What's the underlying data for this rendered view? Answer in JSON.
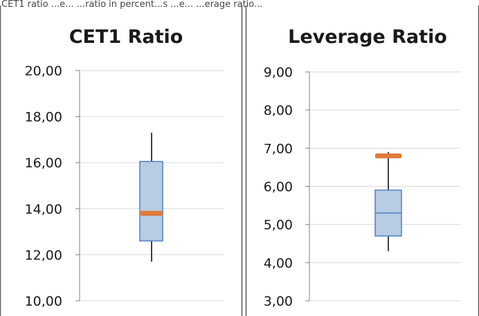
{
  "caption": "CET1 ratio ...e... ...ratio in percent...s ...e... ...erage ratio...",
  "colors": {
    "box_fill": "#b8cce4",
    "box_stroke": "#4f81bd",
    "marker": "#e07b39",
    "whisker": "#000000",
    "grid": "#d9d9d9",
    "frame": "#595959"
  },
  "chart_data": [
    {
      "type": "box",
      "title": "CET1 Ratio",
      "ylim": [
        10,
        20
      ],
      "yticks": [
        10,
        12,
        14,
        16,
        18,
        20
      ],
      "ytick_labels": [
        "10,00",
        "12,00",
        "14,00",
        "16,00",
        "18,00",
        "20,00"
      ],
      "grid": true,
      "box": {
        "whisker_low": 11.7,
        "q1": 12.6,
        "median": 13.8,
        "q3": 16.05,
        "whisker_high": 17.3
      },
      "marker": 13.8
    },
    {
      "type": "box",
      "title": "Leverage Ratio",
      "ylim": [
        3,
        9
      ],
      "yticks": [
        3,
        4,
        5,
        6,
        7,
        8,
        9
      ],
      "ytick_labels": [
        "3,00",
        "4,00",
        "5,00",
        "6,00",
        "7,00",
        "8,00",
        "9,00"
      ],
      "grid": true,
      "box": {
        "whisker_low": 4.3,
        "q1": 4.7,
        "median": 5.3,
        "q3": 5.9,
        "whisker_high": 6.9
      },
      "marker": 6.8
    }
  ]
}
